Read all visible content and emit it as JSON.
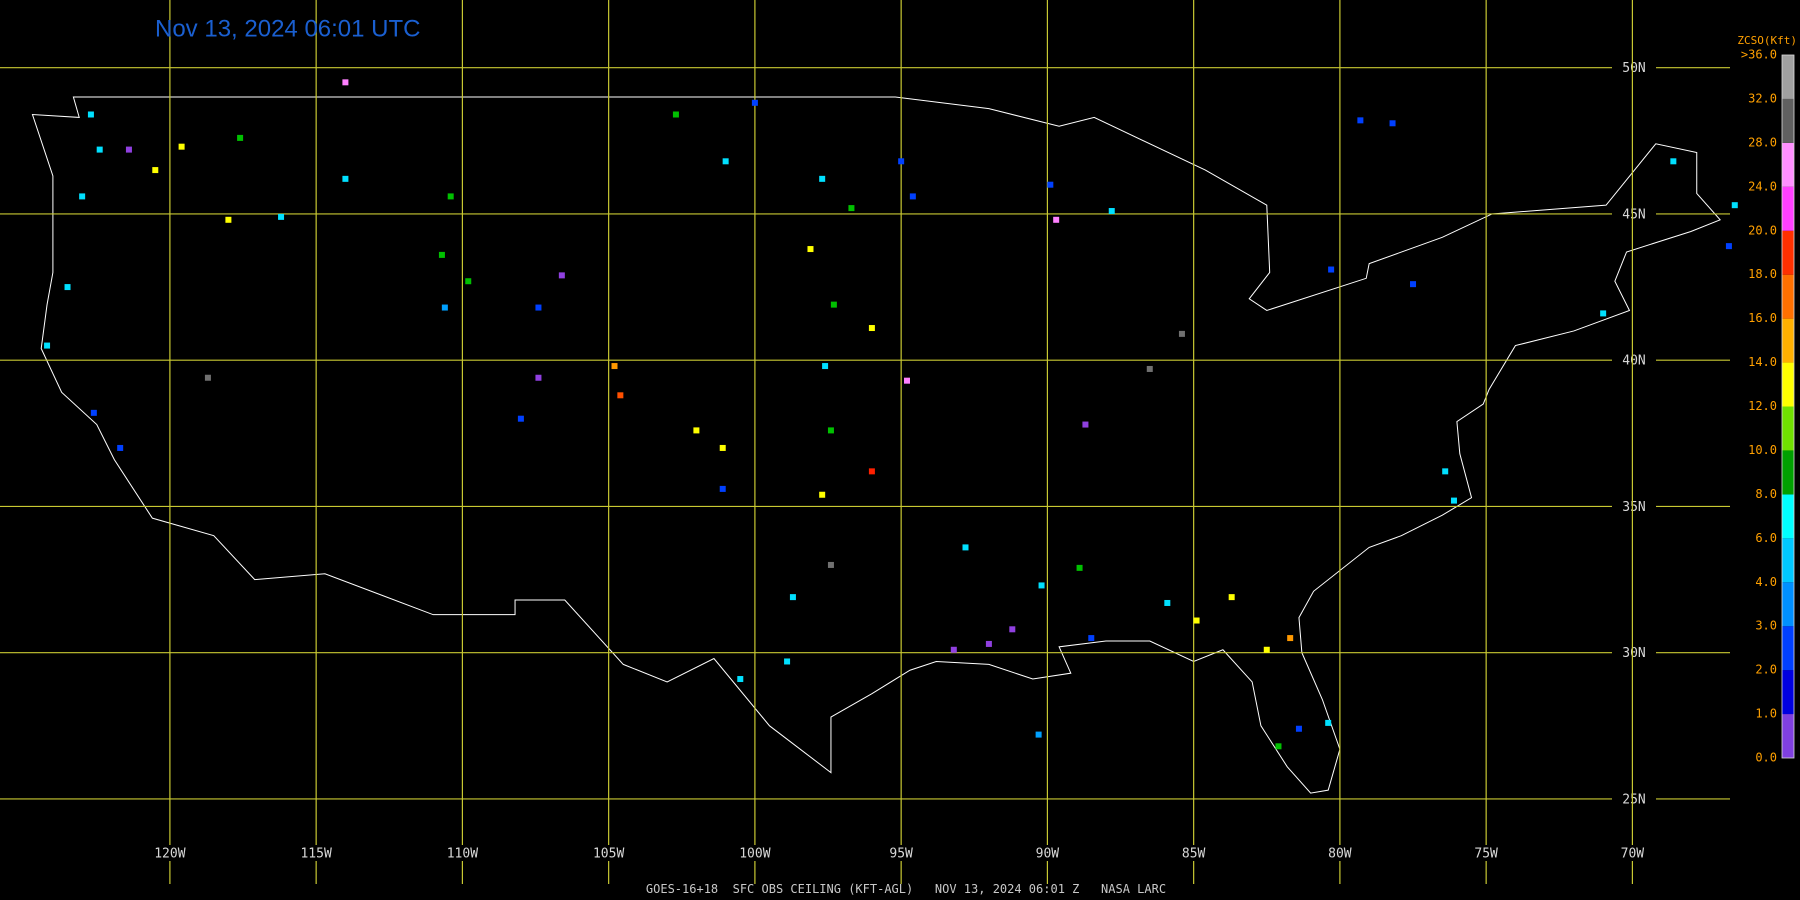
{
  "title": "Nov 13, 2024 06:01 UTC",
  "footer": "GOES-16+18  SFC OBS CEILING (KFT-AGL)   NOV 13, 2024 06:01 Z   NASA LARC",
  "grid": {
    "lat_lines": [
      {
        "value": 50,
        "label": "50N"
      },
      {
        "value": 45,
        "label": "45N"
      },
      {
        "value": 40,
        "label": "40N"
      },
      {
        "value": 35,
        "label": "35N"
      },
      {
        "value": 30,
        "label": "30N"
      },
      {
        "value": 25,
        "label": "25N"
      }
    ],
    "lon_lines": [
      {
        "value": -120,
        "label": "120W"
      },
      {
        "value": -115,
        "label": "115W"
      },
      {
        "value": -110,
        "label": "110W"
      },
      {
        "value": -105,
        "label": "105W"
      },
      {
        "value": -100,
        "label": "100W"
      },
      {
        "value": -95,
        "label": "95W"
      },
      {
        "value": -90,
        "label": "90W"
      },
      {
        "value": -85,
        "label": "85W"
      },
      {
        "value": -80,
        "label": "80W"
      },
      {
        "value": -75,
        "label": "75W"
      },
      {
        "value": -70,
        "label": "70W"
      }
    ]
  },
  "legend": {
    "title": "ZCSO(Kft)",
    "labels": [
      "0.0",
      "1.0",
      "2.0",
      "3.0",
      "4.0",
      "6.0",
      "8.0",
      "10.0",
      "12.0",
      "14.0",
      "16.0",
      "18.0",
      "20.0",
      "24.0",
      "28.0",
      "32.0",
      ">36.0"
    ],
    "colors": [
      "#8040e0",
      "#0000e0",
      "#0040ff",
      "#0090ff",
      "#00c8ff",
      "#00ffff",
      "#00a000",
      "#70e000",
      "#ffff00",
      "#ffb000",
      "#ff7000",
      "#ff3000",
      "#ff40ff",
      "#ff90ff",
      "#606060",
      "#a0a0a0"
    ]
  },
  "stations": [
    {
      "lon": -122.7,
      "lat": 48.4,
      "color": "#00e0ff"
    },
    {
      "lon": -122.4,
      "lat": 47.2,
      "color": "#00e0ff"
    },
    {
      "lon": -123.0,
      "lat": 45.6,
      "color": "#00e0ff"
    },
    {
      "lon": -123.5,
      "lat": 42.5,
      "color": "#00e0ff"
    },
    {
      "lon": -124.2,
      "lat": 40.5,
      "color": "#00e0ff"
    },
    {
      "lon": -122.6,
      "lat": 38.2,
      "color": "#0040ff"
    },
    {
      "lon": -121.7,
      "lat": 37.0,
      "color": "#0040ff"
    },
    {
      "lon": -121.4,
      "lat": 47.2,
      "color": "#9040e0"
    },
    {
      "lon": -119.6,
      "lat": 47.3,
      "color": "#ffff00"
    },
    {
      "lon": -120.5,
      "lat": 46.5,
      "color": "#ffff00"
    },
    {
      "lon": -118.0,
      "lat": 44.8,
      "color": "#ffff00"
    },
    {
      "lon": -116.2,
      "lat": 44.9,
      "color": "#00e0ff"
    },
    {
      "lon": -117.6,
      "lat": 47.6,
      "color": "#00c000"
    },
    {
      "lon": -118.7,
      "lat": 39.4,
      "color": "#707070"
    },
    {
      "lon": -114.0,
      "lat": 49.5,
      "color": "#ff80ff"
    },
    {
      "lon": -114.0,
      "lat": 46.2,
      "color": "#00e0ff"
    },
    {
      "lon": -110.4,
      "lat": 45.6,
      "color": "#00c000"
    },
    {
      "lon": -110.7,
      "lat": 43.6,
      "color": "#00c000"
    },
    {
      "lon": -109.8,
      "lat": 42.7,
      "color": "#00c000"
    },
    {
      "lon": -110.6,
      "lat": 41.8,
      "color": "#00a0ff"
    },
    {
      "lon": -107.4,
      "lat": 41.8,
      "color": "#0040ff"
    },
    {
      "lon": -106.6,
      "lat": 42.9,
      "color": "#9040e0"
    },
    {
      "lon": -107.4,
      "lat": 39.4,
      "color": "#9040e0"
    },
    {
      "lon": -104.8,
      "lat": 39.8,
      "color": "#ff9900"
    },
    {
      "lon": -104.6,
      "lat": 38.8,
      "color": "#ff5000"
    },
    {
      "lon": -108.0,
      "lat": 38.0,
      "color": "#0040ff"
    },
    {
      "lon": -102.0,
      "lat": 37.6,
      "color": "#ffff00"
    },
    {
      "lon": -101.1,
      "lat": 37.0,
      "color": "#ffff00"
    },
    {
      "lon": -102.7,
      "lat": 48.4,
      "color": "#00c000"
    },
    {
      "lon": -100.0,
      "lat": 48.8,
      "color": "#0040ff"
    },
    {
      "lon": -101.0,
      "lat": 46.8,
      "color": "#00e0ff"
    },
    {
      "lon": -97.7,
      "lat": 46.2,
      "color": "#00e0ff"
    },
    {
      "lon": -96.7,
      "lat": 45.2,
      "color": "#00c000"
    },
    {
      "lon": -95.0,
      "lat": 46.8,
      "color": "#0040ff"
    },
    {
      "lon": -94.6,
      "lat": 45.6,
      "color": "#0040ff"
    },
    {
      "lon": -98.1,
      "lat": 43.8,
      "color": "#ffff00"
    },
    {
      "lon": -97.3,
      "lat": 41.9,
      "color": "#00c000"
    },
    {
      "lon": -96.0,
      "lat": 41.1,
      "color": "#ffff00"
    },
    {
      "lon": -94.8,
      "lat": 39.3,
      "color": "#ff80ff"
    },
    {
      "lon": -97.6,
      "lat": 39.8,
      "color": "#00e0ff"
    },
    {
      "lon": -97.4,
      "lat": 37.6,
      "color": "#00c000"
    },
    {
      "lon": -96.0,
      "lat": 36.2,
      "color": "#ff2000"
    },
    {
      "lon": -97.7,
      "lat": 35.4,
      "color": "#ffff00"
    },
    {
      "lon": -101.1,
      "lat": 35.6,
      "color": "#0040ff"
    },
    {
      "lon": -97.4,
      "lat": 33.0,
      "color": "#707070"
    },
    {
      "lon": -98.7,
      "lat": 31.9,
      "color": "#00e0ff"
    },
    {
      "lon": -98.9,
      "lat": 29.7,
      "color": "#00e0ff"
    },
    {
      "lon": -100.5,
      "lat": 29.1,
      "color": "#00e0ff"
    },
    {
      "lon": -92.8,
      "lat": 33.6,
      "color": "#00e0ff"
    },
    {
      "lon": -92.0,
      "lat": 30.3,
      "color": "#9040e0"
    },
    {
      "lon": -93.2,
      "lat": 30.1,
      "color": "#9040e0"
    },
    {
      "lon": -91.2,
      "lat": 30.8,
      "color": "#9040e0"
    },
    {
      "lon": -90.2,
      "lat": 32.3,
      "color": "#00e0ff"
    },
    {
      "lon": -88.9,
      "lat": 32.9,
      "color": "#00c000"
    },
    {
      "lon": -88.5,
      "lat": 30.5,
      "color": "#0040ff"
    },
    {
      "lon": -85.9,
      "lat": 31.7,
      "color": "#00e0ff"
    },
    {
      "lon": -84.9,
      "lat": 31.1,
      "color": "#ffff00"
    },
    {
      "lon": -83.7,
      "lat": 31.9,
      "color": "#ffff00"
    },
    {
      "lon": -82.5,
      "lat": 30.1,
      "color": "#ffff00"
    },
    {
      "lon": -81.7,
      "lat": 30.5,
      "color": "#ff9900"
    },
    {
      "lon": -80.4,
      "lat": 27.6,
      "color": "#00e0ff"
    },
    {
      "lon": -82.1,
      "lat": 26.8,
      "color": "#00c000"
    },
    {
      "lon": -81.4,
      "lat": 27.4,
      "color": "#0040ff"
    },
    {
      "lon": -90.3,
      "lat": 27.2,
      "color": "#00a0ff"
    },
    {
      "lon": -88.7,
      "lat": 37.8,
      "color": "#9040e0"
    },
    {
      "lon": -86.5,
      "lat": 39.7,
      "color": "#707070"
    },
    {
      "lon": -85.4,
      "lat": 40.9,
      "color": "#707070"
    },
    {
      "lon": -89.9,
      "lat": 46.0,
      "color": "#0040ff"
    },
    {
      "lon": -89.7,
      "lat": 44.8,
      "color": "#ff80ff"
    },
    {
      "lon": -87.8,
      "lat": 45.1,
      "color": "#00e0ff"
    },
    {
      "lon": -79.3,
      "lat": 48.2,
      "color": "#0040ff"
    },
    {
      "lon": -78.2,
      "lat": 48.1,
      "color": "#0040ff"
    },
    {
      "lon": -77.5,
      "lat": 42.6,
      "color": "#0040ff"
    },
    {
      "lon": -80.3,
      "lat": 43.1,
      "color": "#0040ff"
    },
    {
      "lon": -76.4,
      "lat": 36.2,
      "color": "#00e0ff"
    },
    {
      "lon": -76.1,
      "lat": 35.2,
      "color": "#00e0ff"
    },
    {
      "lon": -71.0,
      "lat": 41.6,
      "color": "#00e0ff"
    },
    {
      "lon": -68.6,
      "lat": 46.8,
      "color": "#00e0ff"
    },
    {
      "lon": -66.5,
      "lat": 45.3,
      "color": "#00e0ff"
    },
    {
      "lon": -66.7,
      "lat": 43.9,
      "color": "#0040ff"
    }
  ]
}
